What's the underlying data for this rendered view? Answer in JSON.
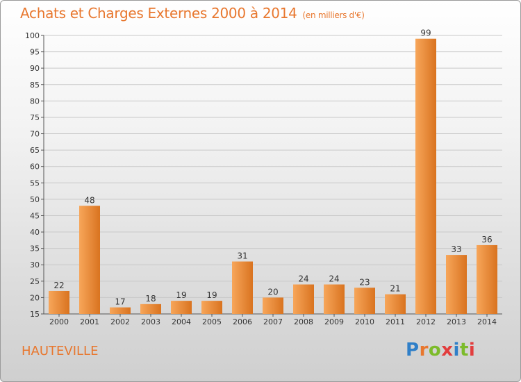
{
  "header": {
    "title": "Achats et Charges Externes 2000 à 2014",
    "subtitle": "(en milliers d'€)"
  },
  "footer": {
    "commune": "HAUTEVILLE",
    "logo_text": "Proxiti"
  },
  "colors": {
    "accent": "#e8772e",
    "bar_light": "#f7a65a",
    "bar_dark": "#d9731f",
    "logo_blue": "#2f7fc8",
    "logo_orange": "#e8772e",
    "logo_green": "#7cbb2a",
    "logo_red": "#e23d3d"
  },
  "chart_data": {
    "type": "bar",
    "categories": [
      "2000",
      "2001",
      "2002",
      "2003",
      "2004",
      "2005",
      "2006",
      "2007",
      "2008",
      "2009",
      "2010",
      "2011",
      "2012",
      "2013",
      "2014"
    ],
    "values": [
      22,
      48,
      17,
      18,
      19,
      19,
      31,
      20,
      24,
      24,
      23,
      21,
      99,
      33,
      36
    ],
    "ylim": [
      15,
      100
    ],
    "yticks": [
      15,
      20,
      25,
      30,
      35,
      40,
      45,
      50,
      55,
      60,
      65,
      70,
      75,
      80,
      85,
      90,
      95,
      100
    ],
    "grid": true,
    "data_labels": true
  }
}
